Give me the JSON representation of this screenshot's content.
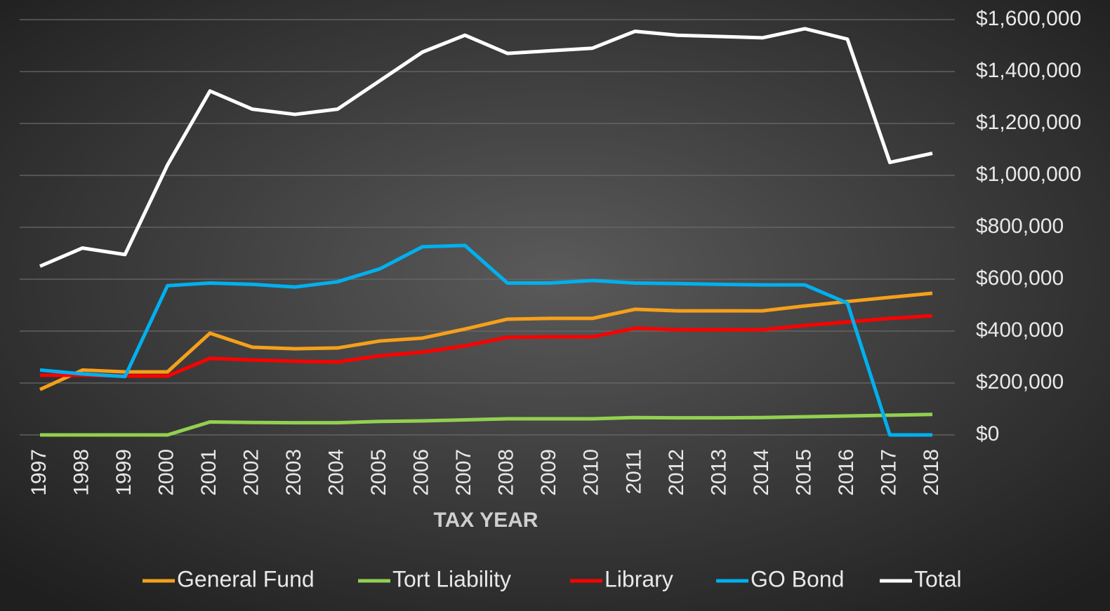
{
  "chart_data": {
    "type": "line",
    "x_label": "TAX YEAR",
    "categories": [
      "1997",
      "1998",
      "1999",
      "2000",
      "2001",
      "2002",
      "2003",
      "2004",
      "2005",
      "2006",
      "2007",
      "2008",
      "2009",
      "2010",
      "2011",
      "2012",
      "2013",
      "2014",
      "2015",
      "2016",
      "2017",
      "2018"
    ],
    "series": [
      {
        "name": "General Fund",
        "color": "#f5a01a",
        "values": [
          175000,
          250000,
          243000,
          243000,
          392000,
          338000,
          332000,
          335000,
          362000,
          373000,
          408000,
          446000,
          449000,
          449000,
          484000,
          478000,
          478000,
          478000,
          497000,
          514000,
          530000,
          546000
        ]
      },
      {
        "name": "Tort Liability",
        "color": "#92d050",
        "values": [
          0,
          0,
          0,
          0,
          50000,
          48000,
          47000,
          47000,
          52000,
          54000,
          58000,
          62000,
          62000,
          62000,
          67000,
          66000,
          66000,
          67000,
          70000,
          73000,
          76000,
          79000
        ]
      },
      {
        "name": "Library",
        "color": "#ff0000",
        "values": [
          230000,
          230000,
          227000,
          227000,
          295000,
          289000,
          284000,
          281000,
          305000,
          319000,
          343000,
          376000,
          378000,
          378000,
          411000,
          405000,
          405000,
          405000,
          422000,
          435000,
          449000,
          459000
        ]
      },
      {
        "name": "GO Bond",
        "color": "#00b0f0",
        "values": [
          250000,
          235000,
          225000,
          575000,
          585000,
          580000,
          570000,
          590000,
          640000,
          725000,
          730000,
          585000,
          585000,
          595000,
          585000,
          583000,
          580000,
          578000,
          578000,
          508000,
          0,
          0
        ]
      },
      {
        "name": "Total",
        "color": "#ffffff",
        "values": [
          650000,
          720000,
          695000,
          1040000,
          1325000,
          1255000,
          1235000,
          1255000,
          1365000,
          1475000,
          1540000,
          1470000,
          1480000,
          1490000,
          1555000,
          1540000,
          1535000,
          1530000,
          1565000,
          1525000,
          1050000,
          1085000
        ]
      }
    ],
    "ylim": [
      0,
      1600000
    ],
    "yticks": [
      {
        "value": 0,
        "label": "$0"
      },
      {
        "value": 200000,
        "label": "$200,000"
      },
      {
        "value": 400000,
        "label": "$400,000"
      },
      {
        "value": 600000,
        "label": "$600,000"
      },
      {
        "value": 800000,
        "label": "$800,000"
      },
      {
        "value": 1000000,
        "label": "$1,000,000"
      },
      {
        "value": 1200000,
        "label": "$1,200,000"
      },
      {
        "value": 1400000,
        "label": "$1,400,000"
      },
      {
        "value": 1600000,
        "label": "$1,600,000"
      }
    ],
    "grid": true,
    "legend": "bottom"
  }
}
